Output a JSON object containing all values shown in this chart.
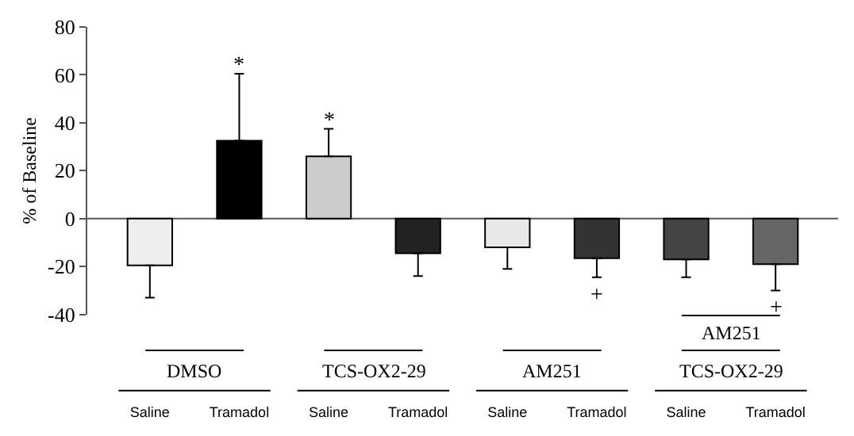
{
  "chart_data": {
    "type": "bar",
    "ylabel": "% of Baseline",
    "categories": [
      "Saline",
      "Tramadol",
      "Saline",
      "Tramadol",
      "Saline",
      "Tramadol",
      "Saline",
      "Tramadol"
    ],
    "values": [
      -19.5,
      32.5,
      26,
      -14.5,
      -12,
      -16.5,
      -17,
      -19
    ],
    "colors": [
      "#eeeeee",
      "#000000",
      "#cccccc",
      "#222222",
      "#e8e8e8",
      "#333333",
      "#444444",
      "#666666"
    ],
    "errors": [
      [
        -33,
        -19.5
      ],
      [
        32.5,
        60.5
      ],
      [
        26,
        37.5
      ],
      [
        -24,
        -14.5
      ],
      [
        -21,
        -12
      ],
      [
        -24.5,
        -16.5
      ],
      [
        -24.5,
        -17
      ],
      [
        -30,
        -19
      ]
    ],
    "ref_lines": [
      {
        "axis": "y",
        "value": 0
      }
    ],
    "value_labels": [
      null,
      "*",
      "*",
      null,
      null,
      "+",
      null,
      "+"
    ],
    "annotations": [
      "DMSO",
      "TCS-OX2-29",
      "AM251",
      "AM251",
      "TCS-OX2-29"
    ],
    "ylim": [
      -40,
      80
    ],
    "yticks": [
      -40,
      -20,
      0,
      20,
      40,
      60,
      80
    ],
    "grid": false,
    "legend": false
  }
}
